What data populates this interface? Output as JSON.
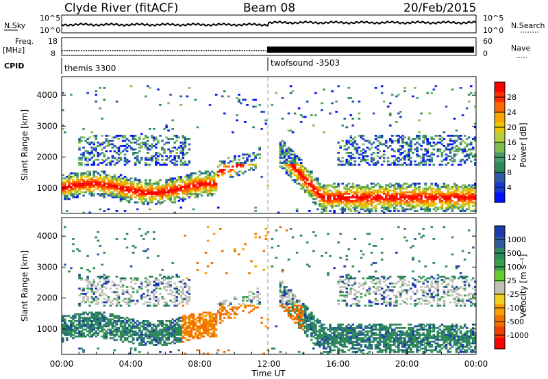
{
  "header": {
    "title": "Clyde River (fitACF)",
    "beam": "Beam 08",
    "date": "20/Feb/2015"
  },
  "summary_panels": {
    "nsky_label": "N.Sky",
    "nsky_ticks": [
      "10^5",
      "10^0"
    ],
    "nsearch_label": "N.Search",
    "nsearch_ticks": [
      "10^5",
      "10^0"
    ],
    "freq_label_1": "Freq.",
    "freq_label_2": "[MHz]",
    "freq_ticks": [
      "18",
      "8"
    ],
    "nave_label": "Nave",
    "nave_ticks": [
      "60",
      "0"
    ],
    "cpid_label": "CPID",
    "cpid_1": "themis 3300",
    "cpid_2": "twofsound -3503"
  },
  "chart_data": [
    {
      "type": "heatmap",
      "name": "power-panel",
      "ylabel": "Slant Range [km]",
      "yticks": [
        "4000",
        "3000",
        "2000",
        "1000"
      ],
      "ylim": [
        180,
        4600
      ],
      "xlim": [
        0,
        24
      ],
      "colorbar": {
        "label": "Power [dB]",
        "ticks": [
          "28",
          "24",
          "20",
          "16",
          "12",
          "8",
          "4"
        ],
        "colors": [
          "#ff0000",
          "#ff3000",
          "#ff6a00",
          "#f7a400",
          "#e8c800",
          "#b8d040",
          "#7cbc50",
          "#4a9a6a",
          "#2e8a5a",
          "#2a5aa8",
          "#1838d0",
          "#0010ff"
        ]
      }
    },
    {
      "type": "heatmap",
      "name": "velocity-panel",
      "ylabel": "Slant Range [km]",
      "yticks": [
        "4000",
        "3000",
        "2000",
        "1000"
      ],
      "ylim": [
        180,
        4600
      ],
      "xlim": [
        0,
        24
      ],
      "xlabel": "Time UT",
      "xticks": [
        "00:00",
        "04:00",
        "08:00",
        "12:00",
        "16:00",
        "20:00",
        "00:00"
      ],
      "colorbar": {
        "label": "Velocity [m s⁻¹]",
        "ticks": [
          "1000",
          "500",
          "100",
          "25",
          "-25",
          "-100",
          "-500",
          "-1000"
        ],
        "colors": [
          "#1e3aa8",
          "#2d5c9c",
          "#2e8a5a",
          "#3aa050",
          "#66cc33",
          "#c0c0b8",
          "#f0d020",
          "#f5a000",
          "#f07000",
          "#f04000",
          "#ff0000"
        ]
      }
    }
  ]
}
